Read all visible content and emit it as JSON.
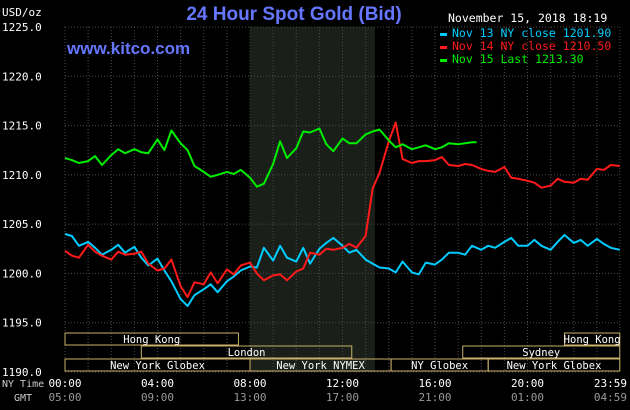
{
  "chart_data": {
    "type": "line",
    "title": "24 Hour Spot Gold (Bid)",
    "watermark": "www.kitco.com",
    "date_stamp": "November 15, 2018 18:19",
    "y_unit": "USD/oz",
    "ylim": [
      1190,
      1225
    ],
    "yticks": [
      "1190.0",
      "1195.0",
      "1200.0",
      "1205.0",
      "1210.0",
      "1215.0",
      "1220.0",
      "1225.0"
    ],
    "xlim_hours": [
      0,
      24
    ],
    "x_axis_row1_label": "NY Time",
    "x_axis_row2_label": "GMT",
    "x_ticks_ny": [
      "00:00",
      "04:00",
      "08:00",
      "12:00",
      "16:00",
      "20:00",
      "23:59"
    ],
    "x_ticks_gmt": [
      "05:00",
      "09:00",
      "13:00",
      "17:00",
      "21:00",
      "01:00",
      "04:59"
    ],
    "shaded_session_hours": [
      8,
      13.4
    ],
    "grid": true,
    "legend_position": "top-right",
    "series": [
      {
        "name": "Nov 13 NY close 1201.90",
        "color": "#00ccff",
        "x": [
          0,
          0.3,
          0.6,
          1,
          1.3,
          1.6,
          2,
          2.3,
          2.6,
          3,
          3.3,
          3.6,
          4,
          4.3,
          4.6,
          5,
          5.3,
          5.6,
          6,
          6.3,
          6.6,
          7,
          7.3,
          7.6,
          8,
          8.3,
          8.6,
          9,
          9.3,
          9.6,
          10,
          10.3,
          10.6,
          11,
          11.3,
          11.6,
          12,
          12.3,
          12.6,
          13,
          13.3,
          13.6,
          14,
          14.3,
          14.6,
          15,
          15.3,
          15.6,
          16,
          16.3,
          16.6,
          17,
          17.3,
          17.6,
          18,
          18.3,
          18.6,
          19,
          19.3,
          19.6,
          20,
          20.3,
          20.6,
          21,
          21.3,
          21.6,
          22,
          22.3,
          22.6,
          23,
          23.3,
          23.6,
          23.99
        ],
        "values": [
          1204.0,
          1203.8,
          1202.8,
          1203.2,
          1202.6,
          1201.9,
          1202.4,
          1202.9,
          1202.1,
          1202.7,
          1201.6,
          1200.8,
          1201.5,
          1200.3,
          1199.2,
          1197.4,
          1196.7,
          1197.8,
          1198.4,
          1198.9,
          1198.1,
          1199.2,
          1199.7,
          1200.3,
          1200.7,
          1200.6,
          1202.6,
          1201.3,
          1202.8,
          1201.6,
          1201.2,
          1202.6,
          1201.0,
          1202.5,
          1203.1,
          1203.6,
          1202.8,
          1202.1,
          1202.4,
          1201.4,
          1201.0,
          1200.6,
          1200.5,
          1200.1,
          1201.2,
          1200.1,
          1199.9,
          1201.1,
          1200.9,
          1201.4,
          1202.1,
          1202.1,
          1201.9,
          1202.8,
          1202.4,
          1202.8,
          1202.6,
          1203.2,
          1203.6,
          1202.8,
          1202.8,
          1203.4,
          1202.8,
          1202.4,
          1203.2,
          1203.9,
          1203.1,
          1203.4,
          1202.8,
          1203.5,
          1203.0,
          1202.6,
          1202.4
        ]
      },
      {
        "name": "Nov 14 NY close 1210.50",
        "color": "#ff1a1a",
        "x": [
          0,
          0.3,
          0.6,
          1,
          1.3,
          1.6,
          2,
          2.3,
          2.6,
          3,
          3.3,
          3.6,
          4,
          4.3,
          4.6,
          5,
          5.3,
          5.6,
          6,
          6.3,
          6.6,
          7,
          7.3,
          7.6,
          8,
          8.3,
          8.6,
          9,
          9.3,
          9.6,
          10,
          10.3,
          10.6,
          11,
          11.3,
          11.6,
          12,
          12.3,
          12.6,
          13,
          13.3,
          13.6,
          14,
          14.3,
          14.6,
          15,
          15.3,
          15.6,
          16,
          16.3,
          16.6,
          17,
          17.3,
          17.6,
          18,
          18.3,
          18.6,
          19,
          19.3,
          19.6,
          20,
          20.3,
          20.6,
          21,
          21.3,
          21.6,
          22,
          22.3,
          22.6,
          23,
          23.3,
          23.6,
          23.99
        ],
        "values": [
          1202.3,
          1201.8,
          1201.6,
          1202.9,
          1202.2,
          1201.8,
          1201.4,
          1202.2,
          1201.9,
          1202.0,
          1202.2,
          1201.0,
          1200.3,
          1200.5,
          1201.4,
          1198.7,
          1197.6,
          1199.1,
          1198.9,
          1200.1,
          1199.0,
          1200.4,
          1199.9,
          1200.8,
          1201.1,
          1200.0,
          1199.3,
          1199.8,
          1199.9,
          1199.3,
          1200.2,
          1200.5,
          1202.1,
          1201.9,
          1202.5,
          1202.4,
          1202.6,
          1203.0,
          1202.6,
          1203.8,
          1208.6,
          1210.2,
          1213.4,
          1215.3,
          1211.6,
          1211.2,
          1211.4,
          1211.4,
          1211.5,
          1211.8,
          1211.0,
          1210.9,
          1211.1,
          1211.0,
          1210.6,
          1210.4,
          1210.3,
          1210.8,
          1209.7,
          1209.6,
          1209.4,
          1209.2,
          1208.7,
          1208.9,
          1209.6,
          1209.3,
          1209.2,
          1209.6,
          1209.5,
          1210.6,
          1210.5,
          1211.0,
          1210.9
        ]
      },
      {
        "name": "Nov 15 Last 1213.30",
        "color": "#00ee00",
        "x": [
          0,
          0.3,
          0.6,
          1,
          1.3,
          1.6,
          2,
          2.3,
          2.6,
          3,
          3.3,
          3.6,
          4,
          4.3,
          4.6,
          5,
          5.3,
          5.6,
          6,
          6.3,
          6.6,
          7,
          7.3,
          7.6,
          8,
          8.3,
          8.6,
          9,
          9.3,
          9.6,
          10,
          10.3,
          10.6,
          11,
          11.3,
          11.6,
          12,
          12.3,
          12.6,
          13,
          13.3,
          13.6,
          14,
          14.3,
          14.6,
          15,
          15.3,
          15.6,
          16,
          16.3,
          16.6,
          17,
          17.3,
          17.6,
          17.8
        ],
        "values": [
          1211.7,
          1211.5,
          1211.2,
          1211.4,
          1211.9,
          1211.0,
          1212.0,
          1212.6,
          1212.2,
          1212.6,
          1212.3,
          1212.2,
          1213.6,
          1212.5,
          1214.5,
          1213.2,
          1212.5,
          1210.9,
          1210.3,
          1209.8,
          1210.0,
          1210.3,
          1210.1,
          1210.5,
          1209.7,
          1208.8,
          1209.1,
          1211.1,
          1213.4,
          1211.7,
          1212.7,
          1214.4,
          1214.3,
          1214.7,
          1213.1,
          1212.4,
          1213.7,
          1213.2,
          1213.2,
          1214.1,
          1214.4,
          1214.6,
          1213.5,
          1212.8,
          1213.1,
          1212.6,
          1212.8,
          1213.0,
          1212.6,
          1212.8,
          1213.2,
          1213.1,
          1213.2,
          1213.3,
          1213.3
        ]
      }
    ],
    "sessions": [
      {
        "name": "Hong Kong",
        "row": 1,
        "start": 0,
        "end": 7.5
      },
      {
        "name": "Hong Kong",
        "row": 1,
        "start": 21.6,
        "end": 23.99
      },
      {
        "name": "London",
        "row": 2,
        "start": 3.3,
        "end": 12.4
      },
      {
        "name": "Sydney",
        "row": 2,
        "start": 17.2,
        "end": 23.99
      },
      {
        "name": "New York Globex",
        "row": 3,
        "start": 0,
        "end": 8.0
      },
      {
        "name": "New York NYMEX",
        "row": 3,
        "start": 8.0,
        "end": 14.1
      },
      {
        "name": "NY Globex",
        "row": 3,
        "start": 14.1,
        "end": 18.3
      },
      {
        "name": "New York Globex",
        "row": 3,
        "start": 18.3,
        "end": 23.99
      }
    ]
  }
}
